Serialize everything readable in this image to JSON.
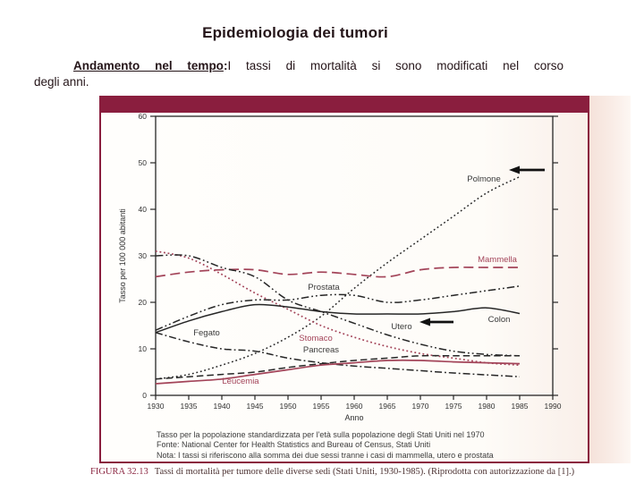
{
  "slide": {
    "title": "Epidemiologia dei tumori",
    "lead": {
      "bold_underlined": "Andamento nel tempo",
      "colon": ":",
      "line1_rest": "I tassi di mortalità si sono modificati nel corso",
      "line2": "degli anni."
    }
  },
  "figure": {
    "notes": [
      "Tasso per la popolazione standardizzata per l'età sulla popolazione degli Stati Uniti nel 1970",
      "Fonte: National Center for Health Statistics and Bureau of Census, Stati Uniti",
      "Nota:  I tassi si riferiscono alla somma dei due sessi tranne i casi di mammella, utero e prostata"
    ],
    "caption_label": "FIGURA 32.13",
    "caption_text": "Tassi di mortalità per tumore delle diverse sedi (Stati Uniti, 1930-1985). (Riprodotta con autorizzazione da [1].)"
  },
  "colors": {
    "maroon_frame": "#8a1e3e",
    "maroon_line": "#a34459",
    "black_line": "#262626",
    "scan_strip": "#f5e2da"
  },
  "chart_data": {
    "type": "line",
    "title": "",
    "xlabel": "Anno",
    "ylabel": "Tasso per 100 000 abitanti",
    "xlim": [
      1930,
      1990
    ],
    "ylim": [
      0,
      60
    ],
    "x_ticks": [
      1930,
      1935,
      1940,
      1945,
      1950,
      1955,
      1960,
      1965,
      1970,
      1975,
      1980,
      1985,
      1990
    ],
    "y_ticks": [
      0,
      10,
      20,
      30,
      40,
      50,
      60
    ],
    "grid": false,
    "legend": "inline-labels",
    "x": [
      1930,
      1935,
      1940,
      1945,
      1950,
      1955,
      1960,
      1965,
      1970,
      1975,
      1980,
      1985
    ],
    "series": [
      {
        "name": "Polmone",
        "color": "black",
        "style": "dotted",
        "values": [
          3.5,
          4.5,
          6.5,
          9,
          12.5,
          17,
          23,
          28.5,
          33.5,
          38.5,
          43.5,
          47
        ]
      },
      {
        "name": "Mammella",
        "color": "maroon",
        "style": "long-dash",
        "values": [
          25.5,
          26.5,
          27,
          27,
          26,
          26.5,
          26,
          25.5,
          27,
          27.5,
          27.5,
          27.5
        ]
      },
      {
        "name": "Stomaco",
        "color": "maroon",
        "style": "dotted",
        "values": [
          31,
          29.5,
          26,
          22,
          18.5,
          15,
          12.5,
          10.5,
          9,
          8,
          7,
          6.5
        ]
      },
      {
        "name": "Utero",
        "color": "black",
        "style": "dash-dot-dot",
        "values": [
          30,
          30,
          27.5,
          25.5,
          20.5,
          18,
          15.5,
          13,
          11,
          9.5,
          8.8,
          8.5
        ]
      },
      {
        "name": "Prostata",
        "color": "black",
        "style": "dash-dot-dot",
        "values": [
          14,
          17,
          19.5,
          20.5,
          20.5,
          21.5,
          21.5,
          20,
          20.5,
          21.5,
          22.5,
          23.5
        ]
      },
      {
        "name": "Colon",
        "color": "black",
        "style": "solid",
        "values": [
          13.5,
          16,
          18,
          19.5,
          19,
          18,
          17.5,
          17.5,
          17.5,
          18,
          18.8,
          17.6
        ]
      },
      {
        "name": "Fegato",
        "color": "black",
        "style": "dash-dot",
        "values": [
          13.5,
          11.5,
          10,
          9.5,
          8,
          7,
          6.3,
          5.8,
          5.3,
          4.8,
          4.4,
          4
        ]
      },
      {
        "name": "Pancreas",
        "color": "black",
        "style": "dashed",
        "values": [
          3.5,
          4,
          4.5,
          5,
          6,
          6.8,
          7.5,
          8,
          8.5,
          8.5,
          8.5,
          8.5
        ]
      },
      {
        "name": "Leucemia",
        "color": "maroon",
        "style": "solid",
        "values": [
          2.5,
          3,
          3.5,
          4.5,
          5.5,
          6.5,
          7,
          7.5,
          7.5,
          7.2,
          7,
          6.8
        ]
      }
    ],
    "annotations": [
      {
        "type": "arrow-left",
        "target": "Polmone"
      },
      {
        "type": "arrow-left",
        "target": "Utero"
      }
    ]
  }
}
